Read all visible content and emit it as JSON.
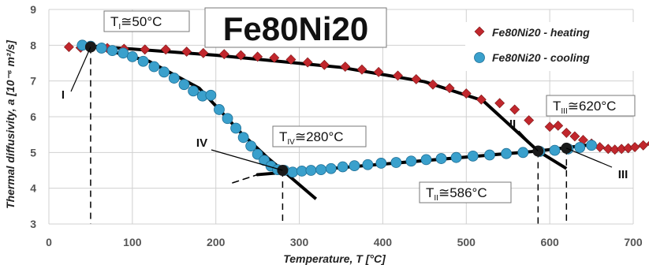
{
  "chart_data": {
    "type": "scatter",
    "title": "Fe80Ni20",
    "xlabel": "Temperature, T [°C]",
    "ylabel": "Thermal diffusivity, a [10⁻⁶ m²/s]",
    "xlim": [
      0,
      700
    ],
    "ylim": [
      3,
      9
    ],
    "x_ticks": [
      0,
      100,
      200,
      300,
      400,
      500,
      600,
      700
    ],
    "y_ticks": [
      3,
      4,
      5,
      6,
      7,
      8,
      9
    ],
    "grid": "on",
    "legend_position": "top-right",
    "series": [
      {
        "name": "Fe80Ni20 - heating",
        "marker": "diamond",
        "color": "#c1272d",
        "points": [
          [
            24,
            7.95
          ],
          [
            38,
            7.93
          ],
          [
            50,
            7.95
          ],
          [
            70,
            7.92
          ],
          [
            90,
            7.9
          ],
          [
            115,
            7.88
          ],
          [
            140,
            7.88
          ],
          [
            165,
            7.82
          ],
          [
            185,
            7.78
          ],
          [
            210,
            7.75
          ],
          [
            230,
            7.72
          ],
          [
            250,
            7.68
          ],
          [
            270,
            7.65
          ],
          [
            290,
            7.6
          ],
          [
            310,
            7.52
          ],
          [
            330,
            7.45
          ],
          [
            355,
            7.4
          ],
          [
            375,
            7.32
          ],
          [
            395,
            7.25
          ],
          [
            418,
            7.15
          ],
          [
            440,
            7.05
          ],
          [
            460,
            6.9
          ],
          [
            480,
            6.8
          ],
          [
            500,
            6.65
          ],
          [
            518,
            6.48
          ],
          [
            540,
            6.38
          ],
          [
            558,
            6.2
          ],
          [
            575,
            5.9
          ],
          [
            600,
            5.72
          ],
          [
            610,
            5.75
          ],
          [
            620,
            5.55
          ],
          [
            630,
            5.45
          ],
          [
            640,
            5.35
          ],
          [
            650,
            5.25
          ],
          [
            660,
            5.15
          ],
          [
            670,
            5.1
          ],
          [
            678,
            5.08
          ],
          [
            686,
            5.1
          ],
          [
            694,
            5.12
          ],
          [
            702,
            5.15
          ],
          [
            712,
            5.2
          ],
          [
            722,
            5.25
          ]
        ]
      },
      {
        "name": "Fe80Ni20 - cooling",
        "marker": "circle",
        "color": "#3aa0cc",
        "points": [
          [
            40,
            8.0
          ],
          [
            50,
            7.97
          ],
          [
            63,
            7.92
          ],
          [
            76,
            7.85
          ],
          [
            89,
            7.78
          ],
          [
            100,
            7.68
          ],
          [
            113,
            7.55
          ],
          [
            126,
            7.4
          ],
          [
            138,
            7.25
          ],
          [
            150,
            7.08
          ],
          [
            162,
            6.9
          ],
          [
            173,
            6.72
          ],
          [
            184,
            6.58
          ],
          [
            194,
            6.6
          ],
          [
            204,
            6.2
          ],
          [
            214,
            5.95
          ],
          [
            224,
            5.68
          ],
          [
            233,
            5.42
          ],
          [
            242,
            5.18
          ],
          [
            250,
            4.95
          ],
          [
            258,
            4.78
          ],
          [
            266,
            4.62
          ],
          [
            274,
            4.52
          ],
          [
            282,
            4.5
          ],
          [
            292,
            4.45
          ],
          [
            303,
            4.48
          ],
          [
            314,
            4.5
          ],
          [
            326,
            4.52
          ],
          [
            338,
            4.55
          ],
          [
            352,
            4.6
          ],
          [
            366,
            4.63
          ],
          [
            382,
            4.66
          ],
          [
            398,
            4.7
          ],
          [
            416,
            4.72
          ],
          [
            434,
            4.76
          ],
          [
            452,
            4.8
          ],
          [
            470,
            4.83
          ],
          [
            488,
            4.86
          ],
          [
            508,
            4.9
          ],
          [
            528,
            4.93
          ],
          [
            548,
            4.97
          ],
          [
            568,
            5.0
          ],
          [
            588,
            5.03
          ],
          [
            606,
            5.06
          ],
          [
            622,
            5.1
          ],
          [
            636,
            5.14
          ],
          [
            650,
            5.2
          ]
        ]
      }
    ],
    "annotations": [
      {
        "prefix": "T",
        "sub": "I",
        "suffix": "≅50°C",
        "x": 50,
        "y": 7.95,
        "label": "I"
      },
      {
        "prefix": "T",
        "sub": "IV",
        "suffix": "≅280°C",
        "x": 280,
        "y": 4.5,
        "label": "IV"
      },
      {
        "prefix": "T",
        "sub": "II",
        "suffix": "≅586°C",
        "x": 586,
        "y": 5.04,
        "label": "II"
      },
      {
        "prefix": "T",
        "sub": "III",
        "suffix": "≅620°C",
        "x": 620,
        "y": 5.12,
        "label": "III"
      }
    ]
  }
}
